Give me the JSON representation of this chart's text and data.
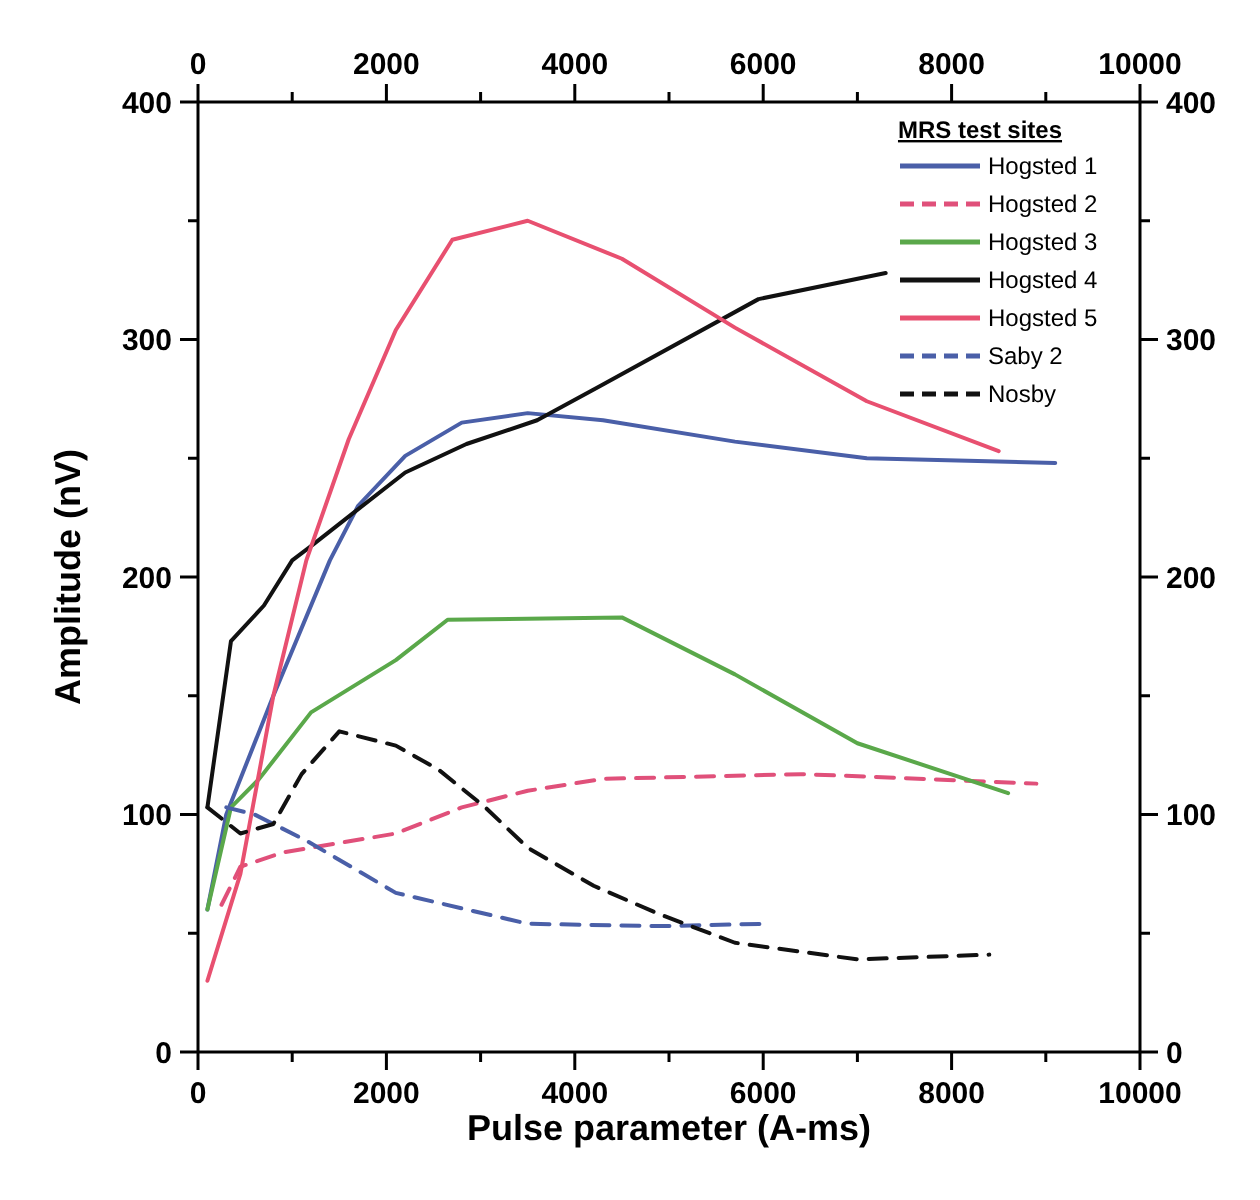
{
  "chart_data": {
    "type": "line",
    "xlabel": "Pulse parameter (A-ms)",
    "ylabel": "Amplitude (nV)",
    "legend_title": "MRS test sites",
    "legend": "top right",
    "grid": false,
    "xlim": [
      0,
      10000
    ],
    "xticks": [
      0,
      {
        "value": 1000,
        "label": null
      },
      2000,
      {
        "value": 3000,
        "label": null
      },
      4000,
      {
        "value": 5000,
        "label": null
      },
      6000,
      {
        "value": 7000,
        "label": null
      },
      8000,
      {
        "value": 9000,
        "label": null
      },
      10000
    ],
    "x2lim": [
      0,
      10000
    ],
    "x2ticks": [
      0,
      {
        "value": 1000,
        "label": null
      },
      2000,
      {
        "value": 3000,
        "label": null
      },
      4000,
      {
        "value": 5000,
        "label": null
      },
      6000,
      {
        "value": 7000,
        "label": null
      },
      8000,
      {
        "value": 9000,
        "label": null
      },
      10000
    ],
    "ylim": [
      0,
      400
    ],
    "yticks": [
      0,
      {
        "value": 50,
        "label": null
      },
      100,
      {
        "value": 150,
        "label": null
      },
      200,
      {
        "value": 250,
        "label": null
      },
      300,
      {
        "value": 350,
        "label": null
      },
      400
    ],
    "y2lim": [
      0,
      400
    ],
    "y2ticks": [
      0,
      {
        "value": 50,
        "label": null
      },
      100,
      {
        "value": 150,
        "label": null
      },
      200,
      {
        "value": 250,
        "label": null
      },
      300,
      {
        "value": 350,
        "label": null
      },
      400
    ],
    "series": [
      {
        "name": "Hogsted 1",
        "color": "#4a5fa8",
        "line_style": "solid",
        "x": [
          100,
          300,
          800,
          1400,
          1700,
          2200,
          2800,
          3500,
          4300,
          5700,
          7100,
          9100
        ],
        "values": [
          60,
          100,
          150,
          207,
          230,
          251,
          265,
          269,
          266,
          257,
          250,
          248
        ]
      },
      {
        "name": "Hogsted 2",
        "color": "#e0507a",
        "line_style": "dashed",
        "x": [
          250,
          450,
          900,
          2100,
          2800,
          3500,
          4300,
          6400,
          7100,
          8900
        ],
        "values": [
          62,
          78,
          84,
          92,
          103,
          110,
          115,
          117,
          116,
          113
        ]
      },
      {
        "name": "Hogsted 3",
        "color": "#5aa84a",
        "line_style": "solid",
        "x": [
          100,
          350,
          650,
          1200,
          2100,
          2650,
          4500,
          5700,
          7000,
          8600
        ],
        "values": [
          60,
          103,
          115,
          143,
          165,
          182,
          183,
          159,
          130,
          109
        ]
      },
      {
        "name": "Hogsted 4",
        "color": "#111111",
        "line_style": "solid",
        "x": [
          100,
          150,
          350,
          700,
          1000,
          1200,
          1650,
          2200,
          2850,
          3600,
          4250,
          5950,
          7300
        ],
        "values": [
          103,
          117,
          173,
          188,
          207,
          213,
          227,
          244,
          256,
          266,
          280,
          317,
          328
        ]
      },
      {
        "name": "Hogsted 5",
        "color": "#e85070",
        "line_style": "solid",
        "x": [
          100,
          450,
          800,
          1150,
          1600,
          2100,
          2700,
          3500,
          4500,
          5700,
          7100,
          8500
        ],
        "values": [
          30,
          75,
          150,
          207,
          258,
          304,
          342,
          350,
          334,
          305,
          274,
          253
        ]
      },
      {
        "name": "Saby 2",
        "color": "#4a5fa8",
        "line_style": "dashed",
        "x": [
          300,
          600,
          1150,
          2100,
          3500,
          4900,
          6050
        ],
        "values": [
          103,
          100,
          89,
          67,
          54,
          53,
          54
        ]
      },
      {
        "name": "Nosby",
        "color": "#111111",
        "line_style": "dashed",
        "x": [
          100,
          450,
          800,
          1100,
          1500,
          2100,
          2550,
          3050,
          3500,
          4200,
          4900,
          5700,
          7000,
          8400
        ],
        "values": [
          103,
          92,
          96,
          117,
          135,
          129,
          119,
          103,
          86,
          70,
          58,
          46,
          39,
          41
        ]
      }
    ]
  }
}
